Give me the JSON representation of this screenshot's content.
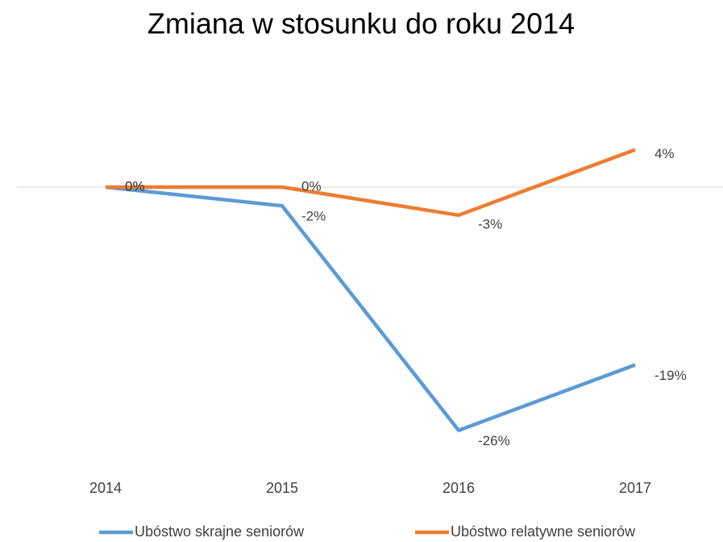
{
  "chart_data": {
    "type": "line",
    "title": "Zmiana w stosunku do roku 2014",
    "categories": [
      "2014",
      "2015",
      "2016",
      "2017"
    ],
    "series": [
      {
        "name": "Ubóstwo skrajne seniorów",
        "color": "#5b9bd5",
        "values": [
          0,
          -2,
          -26,
          -19
        ],
        "value_labels": [
          "0%",
          "-2%",
          "-26%",
          "-19%"
        ]
      },
      {
        "name": "Ubóstwo relatywne seniorów",
        "color": "#ed7d31",
        "values": [
          0,
          0,
          -3,
          4
        ],
        "value_labels": [
          "0%",
          "0%",
          "-3%",
          "4%"
        ]
      }
    ],
    "ylim": [
      -30,
      10
    ],
    "yticks": [
      0
    ],
    "y_tick_labels": false,
    "grid": true,
    "legend": "bottom"
  }
}
